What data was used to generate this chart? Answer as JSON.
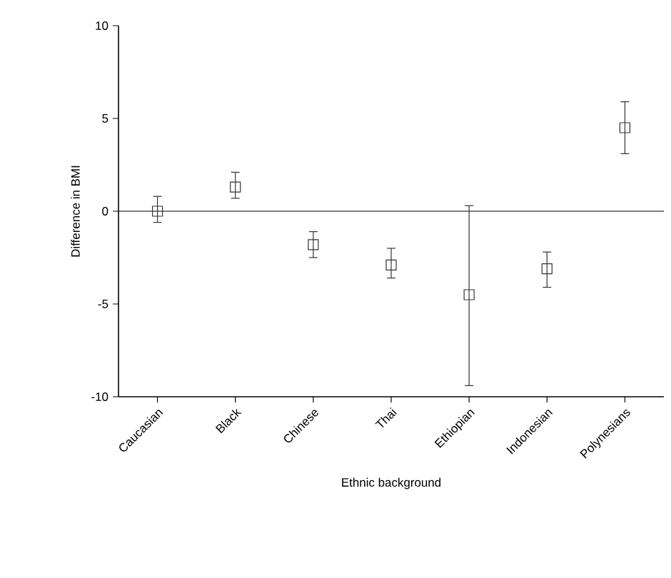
{
  "chart_data": {
    "type": "scatter",
    "xlabel": "Ethnic background",
    "ylabel": "Difference in BMI",
    "categories": [
      "Caucasian",
      "Black",
      "Chinese",
      "Thai",
      "Ethiopian",
      "Indonesian",
      "Polynesians"
    ],
    "values": [
      0,
      1.3,
      -1.8,
      -2.9,
      -4.5,
      -3.1,
      4.5
    ],
    "errors": [
      [
        -0.6,
        0.8
      ],
      [
        0.7,
        2.1
      ],
      [
        -2.5,
        -1.1
      ],
      [
        -3.6,
        -2.0
      ],
      [
        -9.4,
        0.3
      ],
      [
        -4.1,
        -2.2
      ],
      [
        3.1,
        5.9
      ]
    ],
    "color": "#333333",
    "marker": "square",
    "ylim": [
      -10,
      10
    ],
    "yticks": [
      -10,
      -5,
      0,
      5,
      10
    ],
    "ref_lines": [
      {
        "axis": "y",
        "value": 0
      }
    ]
  }
}
